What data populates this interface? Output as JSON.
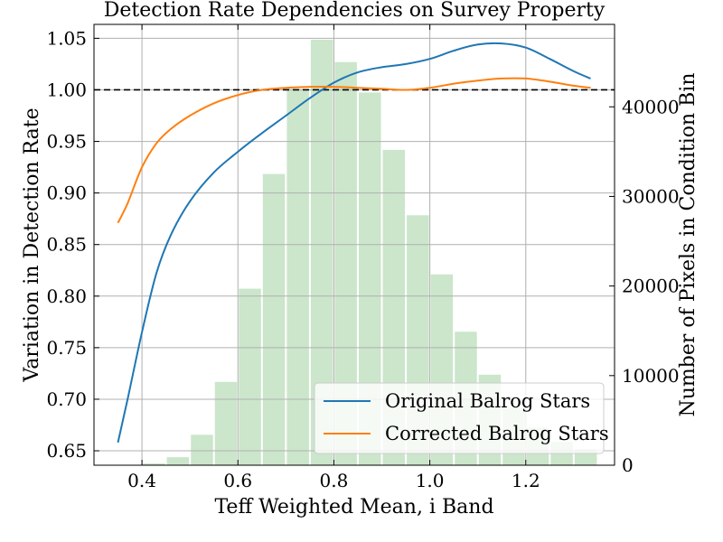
{
  "chart_data": {
    "type": "line",
    "title": "Detection Rate Dependencies on Survey Property",
    "xlabel": "Teff Weighted Mean, i Band",
    "ylabel": "Variation in Detection Rate",
    "y2label": "Number of Pixels in Condition Bin",
    "xlim": [
      0.3,
      1.385
    ],
    "ylim": [
      0.636,
      1.0635
    ],
    "y2lim": [
      0,
      49200
    ],
    "xticks": [
      0.4,
      0.6,
      0.8,
      1.0,
      1.2
    ],
    "xtick_labels": [
      "0.4",
      "0.6",
      "0.8",
      "1.0",
      "1.2"
    ],
    "yticks": [
      0.65,
      0.7,
      0.75,
      0.8,
      0.85,
      0.9,
      0.95,
      1.0,
      1.05
    ],
    "ytick_labels": [
      "0.65",
      "0.70",
      "0.75",
      "0.80",
      "0.85",
      "0.90",
      "0.95",
      "1.00",
      "1.05"
    ],
    "y2ticks": [
      0,
      10000,
      20000,
      30000,
      40000
    ],
    "y2tick_labels": [
      "0",
      "10000",
      "20000",
      "30000",
      "40000"
    ],
    "grid": true,
    "reference_line": {
      "y": 1.0,
      "style": "dashed",
      "color": "#000000"
    },
    "histogram": {
      "color": "#a8d5a8",
      "bin_width": 0.05,
      "bins": [
        {
          "x0": 0.35,
          "count": 0
        },
        {
          "x0": 0.4,
          "count": 200
        },
        {
          "x0": 0.45,
          "count": 900
        },
        {
          "x0": 0.5,
          "count": 3400
        },
        {
          "x0": 0.55,
          "count": 9300
        },
        {
          "x0": 0.6,
          "count": 19700
        },
        {
          "x0": 0.65,
          "count": 32500
        },
        {
          "x0": 0.7,
          "count": 42000
        },
        {
          "x0": 0.75,
          "count": 47500
        },
        {
          "x0": 0.8,
          "count": 45000
        },
        {
          "x0": 0.85,
          "count": 41600
        },
        {
          "x0": 0.9,
          "count": 35200
        },
        {
          "x0": 0.95,
          "count": 27900
        },
        {
          "x0": 1.0,
          "count": 21300
        },
        {
          "x0": 1.05,
          "count": 14900
        },
        {
          "x0": 1.1,
          "count": 10100
        },
        {
          "x0": 1.15,
          "count": 6400
        },
        {
          "x0": 1.2,
          "count": 4200
        },
        {
          "x0": 1.25,
          "count": 2600
        },
        {
          "x0": 1.3,
          "count": 1800
        }
      ]
    },
    "series": [
      {
        "name": "Original Balrog Stars",
        "color": "#1f77b4",
        "x": [
          0.35,
          0.37,
          0.4,
          0.43,
          0.46,
          0.5,
          0.55,
          0.6,
          0.65,
          0.7,
          0.75,
          0.8,
          0.85,
          0.9,
          0.95,
          1.0,
          1.05,
          1.1,
          1.15,
          1.2,
          1.25,
          1.3,
          1.335
        ],
        "values": [
          0.658,
          0.7,
          0.765,
          0.822,
          0.859,
          0.892,
          0.92,
          0.94,
          0.958,
          0.975,
          0.992,
          1.007,
          1.017,
          1.022,
          1.025,
          1.03,
          1.038,
          1.044,
          1.045,
          1.041,
          1.03,
          1.018,
          1.011
        ]
      },
      {
        "name": "Corrected Balrog Stars",
        "color": "#ff7f0e",
        "x": [
          0.35,
          0.37,
          0.4,
          0.43,
          0.46,
          0.5,
          0.55,
          0.6,
          0.65,
          0.7,
          0.75,
          0.8,
          0.85,
          0.9,
          0.95,
          1.0,
          1.05,
          1.1,
          1.15,
          1.2,
          1.25,
          1.3,
          1.335
        ],
        "values": [
          0.871,
          0.89,
          0.925,
          0.948,
          0.962,
          0.975,
          0.987,
          0.995,
          1.0,
          1.002,
          1.003,
          1.003,
          1.002,
          1.001,
          1.0,
          1.002,
          1.006,
          1.009,
          1.011,
          1.011,
          1.008,
          1.004,
          1.002
        ]
      }
    ],
    "legend_position": "bottom-right"
  }
}
